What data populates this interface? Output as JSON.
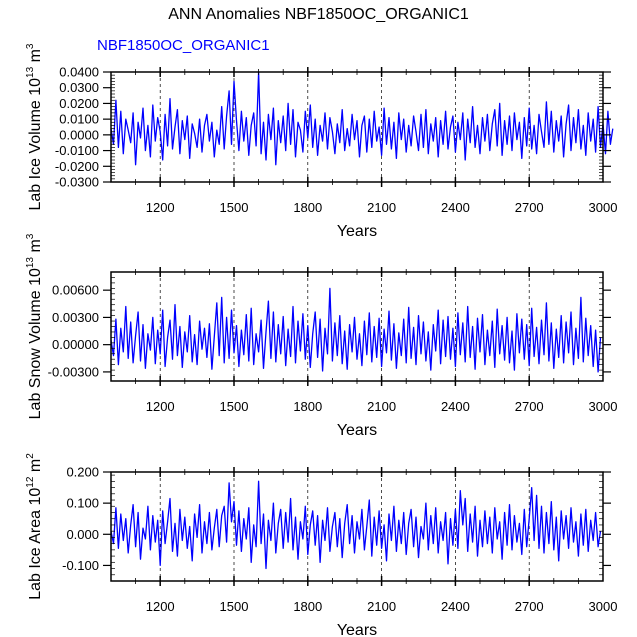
{
  "title": "ANN Anomalies NBF1850OC_ORGANIC1",
  "left_string": "NBF1850OC_ORGANIC1",
  "line_color": "#0000ff",
  "chart_data": [
    {
      "type": "line",
      "title": "ANN Anomalies NBF1850OC_ORGANIC1",
      "series_name": "NBF1850OC_ORGANIC1",
      "xlabel": "Years",
      "ylabel": "Lab Ice Volume 10^13 m^3",
      "ylabel_base": "Lab Ice Volume 10",
      "ylabel_exp": "13",
      "ylabel_unit": " m",
      "ylabel_unit_exp": "3",
      "xlim": [
        1000,
        3000
      ],
      "ylim": [
        -0.03,
        0.04
      ],
      "xticks": [
        1200,
        1500,
        1800,
        2100,
        2400,
        2700,
        3000
      ],
      "xtick_labels": [
        "1200",
        "1500",
        "1800",
        "2100",
        "2400",
        "2700",
        "3000"
      ],
      "yticks": [
        -0.03,
        -0.02,
        -0.01,
        0.0,
        0.01,
        0.02,
        0.03,
        0.04
      ],
      "ytick_labels": [
        "-0.0300",
        "-0.0200",
        "-0.0100",
        "0.0000",
        "0.0100",
        "0.0200",
        "0.0300",
        "0.0400"
      ],
      "grid": "vertical dashed at major x ticks",
      "x_start": 1000,
      "x_step": 10,
      "values": [
        0.004,
        -0.006,
        0.022,
        -0.008,
        0.015,
        -0.012,
        0.01,
        0.003,
        -0.005,
        0.014,
        -0.019,
        0.008,
        -0.002,
        0.017,
        -0.01,
        0.006,
        -0.014,
        0.019,
        -0.004,
        0.011,
        0.002,
        -0.016,
        0.013,
        -0.007,
        0.023,
        -0.009,
        0.005,
        0.016,
        -0.012,
        0.009,
        -0.003,
        0.012,
        -0.015,
        0.007,
        0.001,
        -0.008,
        0.01,
        -0.011,
        0.006,
        0.013,
        -0.004,
        0.008,
        -0.014,
        0.003,
        -0.006,
        0.018,
        -0.009,
        0.012,
        0.028,
        -0.006,
        0.034,
        0.009,
        -0.01,
        0.015,
        -0.004,
        0.011,
        -0.013,
        0.006,
        0.014,
        -0.007,
        0.04,
        -0.012,
        0.008,
        -0.016,
        0.013,
        -0.003,
        0.017,
        -0.019,
        0.009,
        -0.005,
        0.012,
        -0.01,
        0.02,
        -0.006,
        0.016,
        -0.014,
        0.008,
        0.003,
        -0.011,
        0.015,
        -0.002,
        0.019,
        -0.008,
        0.01,
        -0.013,
        0.006,
        -0.004,
        0.014,
        -0.009,
        0.011,
        0.002,
        -0.012,
        0.007,
        -0.005,
        0.016,
        -0.01,
        0.004,
        -0.007,
        0.013,
        -0.003,
        0.009,
        -0.014,
        0.006,
        0.012,
        -0.011,
        0.01,
        -0.008,
        0.015,
        -0.004,
        0.005,
        -0.013,
        0.017,
        -0.006,
        0.011,
        -0.009,
        0.008,
        -0.015,
        0.014,
        -0.003,
        0.01,
        -0.011,
        0.006,
        -0.007,
        0.012,
        0.002,
        -0.01,
        0.013,
        -0.008,
        0.016,
        -0.012,
        0.007,
        -0.004,
        0.011,
        -0.014,
        0.009,
        -0.006,
        0.015,
        -0.009,
        0.005,
        0.012,
        -0.011,
        0.008,
        -0.003,
        0.014,
        -0.016,
        0.01,
        -0.005,
        0.018,
        -0.008,
        0.006,
        -0.012,
        0.011,
        -0.004,
        0.013,
        -0.01,
        0.007,
        0.016,
        -0.007,
        0.02,
        -0.013,
        0.009,
        -0.006,
        0.012,
        -0.01,
        0.014,
        -0.003,
        0.008,
        -0.015,
        0.011,
        -0.007,
        0.017,
        -0.009,
        0.006,
        -0.012,
        0.013,
        0.002,
        -0.008,
        0.021,
        -0.006,
        0.015,
        -0.011,
        0.009,
        -0.004,
        0.012,
        -0.014,
        0.007,
        0.019,
        -0.01,
        0.011,
        -0.005,
        0.016,
        -0.009,
        0.006,
        -0.013,
        0.014,
        -0.004,
        0.01,
        -0.011,
        0.018,
        -0.008,
        0.007,
        -0.012,
        0.015,
        -0.006,
        0.004
      ]
    },
    {
      "type": "line",
      "series_name": "NBF1850OC_ORGANIC1",
      "xlabel": "Years",
      "ylabel": "Lab Snow Volume 10^13 m^3",
      "ylabel_base": "Lab Snow Volume 10",
      "ylabel_exp": "13",
      "ylabel_unit": " m",
      "ylabel_unit_exp": "3",
      "xlim": [
        1000,
        3000
      ],
      "ylim": [
        -0.004,
        0.008
      ],
      "xticks": [
        1200,
        1500,
        1800,
        2100,
        2400,
        2700,
        3000
      ],
      "xtick_labels": [
        "1200",
        "1500",
        "1800",
        "2100",
        "2400",
        "2700",
        "3000"
      ],
      "yticks": [
        -0.003,
        0.0,
        0.003,
        0.006
      ],
      "ytick_labels": [
        "-0.00300",
        "0.00000",
        "0.00300",
        "0.00600"
      ],
      "grid": "vertical dashed at major x ticks",
      "x_start": 1000,
      "x_step": 10,
      "values": [
        0.0005,
        -0.0012,
        0.0028,
        -0.0022,
        0.0018,
        -0.0008,
        0.0042,
        -0.0015,
        0.0025,
        -0.002,
        0.001,
        0.0036,
        -0.0018,
        0.0022,
        -0.0026,
        0.0012,
        -0.0006,
        0.003,
        -0.0021,
        0.0016,
        -0.001,
        0.0038,
        -0.0024,
        0.0008,
        0.0027,
        -0.0016,
        0.0044,
        -0.0012,
        0.002,
        -0.0025,
        0.0014,
        -0.0008,
        0.0032,
        -0.0019,
        0.0011,
        -0.0022,
        0.0026,
        -0.0005,
        0.0018,
        -0.0014,
        0.0023,
        -0.0027,
        0.0009,
        0.0046,
        -0.0012,
        0.0052,
        -0.002,
        0.003,
        -0.0015,
        0.0038,
        -0.0009,
        0.0021,
        -0.0024,
        0.0016,
        -0.0011,
        0.0033,
        -0.0018,
        0.004,
        -0.0022,
        0.0012,
        -0.0008,
        0.0027,
        -0.0026,
        0.0014,
        0.0048,
        -0.0015,
        0.0036,
        -0.0019,
        0.0022,
        -0.001,
        0.0031,
        -0.0023,
        0.0017,
        -0.0013,
        0.0042,
        -0.002,
        0.0026,
        -0.0007,
        0.0034,
        -0.0016,
        0.0021,
        -0.0025,
        0.0012,
        0.0036,
        -0.0014,
        0.0028,
        -0.0029,
        0.0018,
        -0.001,
        0.0062,
        -0.0018,
        0.0024,
        -0.0012,
        0.0032,
        -0.0021,
        0.0015,
        -0.0027,
        0.0022,
        -0.0008,
        0.003,
        -0.0016,
        0.0012,
        -0.0023,
        0.0026,
        -0.0011,
        0.0035,
        -0.0019,
        0.002,
        -0.0014,
        0.0029,
        -0.0024,
        0.0017,
        -0.0009,
        0.0037,
        -0.0017,
        0.0023,
        -0.0026,
        0.0013,
        -0.0012,
        0.0028,
        -0.002,
        0.0041,
        -0.0015,
        0.0019,
        -0.0022,
        0.0032,
        -0.001,
        0.0025,
        -0.0018,
        0.0014,
        -0.0028,
        0.0022,
        -0.0007,
        0.0038,
        -0.0021,
        0.0027,
        -0.0013,
        0.0031,
        -0.0016,
        0.0018,
        -0.0024,
        0.0035,
        -0.0011,
        0.0024,
        -0.0019,
        0.0042,
        -0.0014,
        0.002,
        -0.0027,
        0.0029,
        -0.0008,
        0.0033,
        -0.0022,
        0.0016,
        -0.0012,
        0.0026,
        -0.0025,
        0.0039,
        -0.001,
        0.0021,
        -0.0017,
        0.003,
        -0.002,
        0.0015,
        -0.0028,
        0.0034,
        -0.0009,
        0.0028,
        -0.0016,
        0.0022,
        -0.0023,
        0.004,
        -0.0013,
        0.0019,
        -0.0021,
        0.0027,
        -0.0011,
        0.0046,
        -0.0018,
        0.0024,
        -0.0026,
        0.0017,
        -0.0014,
        0.0032,
        -0.002,
        0.0025,
        -0.0009,
        0.0036,
        -0.0022,
        0.0018,
        -0.0015,
        0.0052,
        -0.0019,
        0.0029,
        -0.0012,
        0.0021,
        -0.0024,
        0.0016,
        -0.003,
        0.0008
      ]
    },
    {
      "type": "line",
      "series_name": "NBF1850OC_ORGANIC1",
      "xlabel": "Years",
      "ylabel": "Lab Ice Area 10^12 m^2",
      "ylabel_base": "Lab Ice Area 10",
      "ylabel_exp": "12",
      "ylabel_unit": " m",
      "ylabel_unit_exp": "2",
      "xlim": [
        1000,
        3000
      ],
      "ylim": [
        -0.15,
        0.2
      ],
      "xticks": [
        1200,
        1500,
        1800,
        2100,
        2400,
        2700,
        3000
      ],
      "xtick_labels": [
        "1200",
        "1500",
        "1800",
        "2100",
        "2400",
        "2700",
        "3000"
      ],
      "yticks": [
        -0.1,
        0.0,
        0.1,
        0.2
      ],
      "ytick_labels": [
        "-0.100",
        "0.000",
        "0.100",
        "0.200"
      ],
      "grid": "vertical dashed at major x ticks",
      "x_start": 1000,
      "x_step": 10,
      "values": [
        0.01,
        -0.03,
        0.085,
        -0.045,
        0.065,
        -0.02,
        0.05,
        -0.06,
        0.03,
        0.095,
        -0.04,
        0.07,
        -0.08,
        0.02,
        -0.015,
        0.09,
        -0.05,
        0.06,
        -0.025,
        0.045,
        -0.1,
        0.075,
        -0.03,
        0.04,
        0.115,
        -0.055,
        0.035,
        -0.07,
        0.08,
        -0.02,
        0.055,
        -0.045,
        0.025,
        -0.085,
        0.065,
        -0.01,
        0.095,
        -0.06,
        0.04,
        -0.03,
        0.07,
        -0.05,
        0.02,
        0.08,
        -0.04,
        0.06,
        0.09,
        -0.025,
        0.165,
        0.04,
        0.105,
        -0.035,
        0.075,
        -0.055,
        0.05,
        -0.015,
        0.085,
        -0.09,
        0.03,
        -0.04,
        0.17,
        -0.03,
        0.065,
        -0.11,
        0.045,
        -0.02,
        0.1,
        -0.06,
        0.035,
        0.08,
        -0.045,
        0.07,
        -0.025,
        0.115,
        -0.05,
        0.055,
        -0.08,
        0.04,
        -0.015,
        0.09,
        -0.065,
        0.03,
        0.075,
        -0.035,
        0.06,
        -0.09,
        0.045,
        -0.02,
        0.085,
        -0.055,
        0.025,
        0.07,
        -0.04,
        0.05,
        -0.075,
        0.035,
        0.095,
        -0.03,
        0.06,
        -0.06,
        0.04,
        -0.015,
        0.08,
        -0.05,
        0.025,
        0.11,
        -0.07,
        0.055,
        -0.035,
        0.075,
        -0.045,
        0.03,
        -0.085,
        0.065,
        -0.02,
        0.09,
        -0.055,
        0.045,
        -0.03,
        0.07,
        -0.065,
        0.035,
        0.08,
        -0.04,
        0.055,
        -0.075,
        0.025,
        -0.015,
        0.1,
        -0.05,
        0.06,
        -0.03,
        0.085,
        -0.06,
        0.04,
        -0.02,
        0.07,
        -0.095,
        0.05,
        -0.035,
        0.08,
        -0.045,
        0.14,
        0.03,
        0.115,
        -0.055,
        0.065,
        -0.025,
        0.09,
        -0.07,
        0.045,
        -0.04,
        0.075,
        -0.03,
        0.055,
        -0.06,
        0.085,
        -0.015,
        0.04,
        -0.08,
        0.07,
        -0.035,
        0.095,
        -0.05,
        0.06,
        -0.025,
        0.035,
        -0.065,
        0.08,
        -0.04,
        0.05,
        0.15,
        -0.02,
        0.125,
        -0.045,
        0.09,
        -0.06,
        0.07,
        -0.03,
        0.105,
        -0.05,
        0.055,
        -0.085,
        0.075,
        -0.015,
        0.06,
        -0.045,
        0.085,
        -0.025,
        0.04,
        -0.07,
        0.065,
        -0.035,
        0.08,
        -0.055,
        0.045,
        -0.02,
        0.07,
        -0.04,
        0.01
      ]
    }
  ]
}
